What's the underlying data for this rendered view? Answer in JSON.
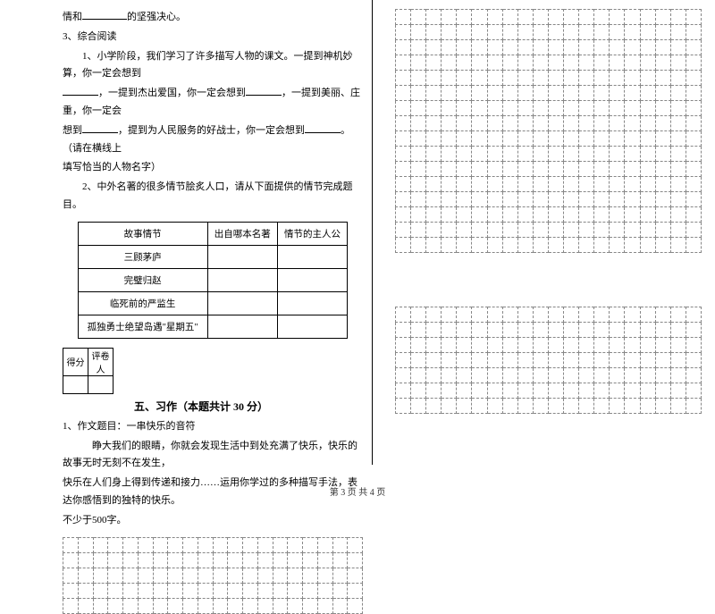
{
  "left": {
    "line1_prefix": "情和",
    "line1_suffix": "的坚强决心。",
    "q3_title": "3、综合阅读",
    "q3_1": "1、小学阶段，我们学习了许多描写人物的课文。一提到神机妙算，你一定会想到",
    "q3_1b": "，一提到杰出爱国，你一定会想到",
    "q3_1c": "，一提到美丽、庄重，你一定会",
    "q3_1d_prefix": "想到",
    "q3_1d_mid": "，提到为人民服务的好战士，你一定会想到",
    "q3_1d_suffix": "。（请在横线上",
    "q3_1e": "填写恰当的人物名字）",
    "q3_2": "2、中外名著的很多情节脍炙人口，请从下面提供的情节完成题目。",
    "table": {
      "headers": [
        "故事情节",
        "出自哪本名著",
        "情节的主人公"
      ],
      "rows": [
        [
          "三顾茅庐",
          "",
          ""
        ],
        [
          "完璧归赵",
          "",
          ""
        ],
        [
          "临死前的严监生",
          "",
          ""
        ],
        [
          "孤独勇士绝望岛遇\"星期五\"",
          "",
          ""
        ]
      ]
    },
    "score_labels": [
      "得分",
      "评卷人"
    ],
    "section5_title": "五、习作（本题共计 30 分）",
    "essay_num": "1、作文题目：一串快乐的音符",
    "essay_body1": "睁大我们的眼睛，你就会发现生活中到处充满了快乐，快乐的故事无时无刻不在发生，",
    "essay_body2": "快乐在人们身上得到传递和接力……运用你学过的多种描写手法，表达你感悟到的独特的快乐。",
    "essay_body3": "不少于500字。"
  },
  "footer": "第 3 页 共 4 页",
  "grid": {
    "left_rows": 5,
    "left_cols": 20,
    "right_top_rows": 16,
    "right_bot_rows": 7,
    "right_cols": 20
  },
  "colors": {
    "text": "#000000",
    "grid_border": "#888888",
    "bg": "#ffffff"
  }
}
